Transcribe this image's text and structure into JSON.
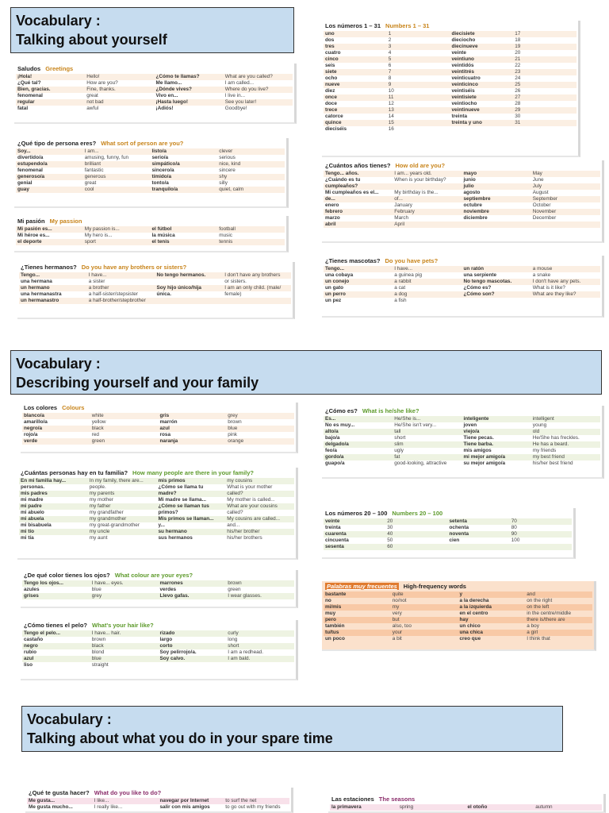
{
  "sections": [
    {
      "line1": "Vocabulary :",
      "line2": "Talking about yourself"
    },
    {
      "line1": "Vocabulary :",
      "line2": "Describing yourself and your family"
    },
    {
      "line1": "Vocabulary :",
      "line2": "Talking about what you do in your spare time"
    }
  ],
  "cards": {
    "saludos": {
      "title_es": "Saludos",
      "title_en": "Greetings",
      "rows": [
        [
          "¡Hola!",
          "Hello!",
          "¿Cómo te llamas?",
          "What are you called?"
        ],
        [
          "¿Qué tal?",
          "How are you?",
          "Me llamo...",
          "I am called..."
        ],
        [
          "Bien, gracias.",
          "Fine, thanks.",
          "¿Dónde vives?",
          "Where do you live?"
        ],
        [
          "fenomenal",
          "great",
          "Vivo en...",
          "I live in..."
        ],
        [
          "regular",
          "not bad",
          "¡Hasta luego!",
          "See you later!"
        ],
        [
          "fatal",
          "awful",
          "¡Adiós!",
          "Goodbye!"
        ]
      ]
    },
    "numeros": {
      "title_es": "Los números 1 – 31",
      "title_en": "Numbers 1 – 31",
      "rows": [
        [
          "uno",
          "1",
          "diecisiete",
          "17"
        ],
        [
          "dos",
          "2",
          "dieciocho",
          "18"
        ],
        [
          "tres",
          "3",
          "diecinueve",
          "19"
        ],
        [
          "cuatro",
          "4",
          "veinte",
          "20"
        ],
        [
          "cinco",
          "5",
          "veintiuno",
          "21"
        ],
        [
          "seis",
          "6",
          "veintidós",
          "22"
        ],
        [
          "siete",
          "7",
          "veintitrés",
          "23"
        ],
        [
          "ocho",
          "8",
          "veinticuatro",
          "24"
        ],
        [
          "nueve",
          "9",
          "veinticinco",
          "25"
        ],
        [
          "diez",
          "10",
          "veintiséis",
          "26"
        ],
        [
          "once",
          "11",
          "veintisiete",
          "27"
        ],
        [
          "doce",
          "12",
          "veintiocho",
          "28"
        ],
        [
          "trece",
          "13",
          "veintinueve",
          "29"
        ],
        [
          "catorce",
          "14",
          "treinta",
          "30"
        ],
        [
          "quince",
          "15",
          "treinta y uno",
          "31"
        ],
        [
          "dieciséis",
          "16",
          "",
          ""
        ]
      ]
    },
    "persona": {
      "title_es": "¿Qué tipo de persona eres?",
      "title_en": "What sort of person are you?",
      "rows": [
        [
          "Soy...",
          "I am...",
          "listo/a",
          "clever"
        ],
        [
          "divertido/a",
          "amusing, funny, fun",
          "serio/a",
          "serious"
        ],
        [
          "estupendo/a",
          "brilliant",
          "simpático/a",
          "nice, kind"
        ],
        [
          "fenomenal",
          "fantastic",
          "sincero/a",
          "sincere"
        ],
        [
          "generoso/a",
          "generous",
          "tímido/a",
          "shy"
        ],
        [
          "genial",
          "great",
          "tonto/a",
          "silly"
        ],
        [
          "guay",
          "cool",
          "tranquilo/a",
          "quiet, calm"
        ]
      ]
    },
    "anos": {
      "title_es": "¿Cuántos años tienes?",
      "title_en": "How old are you?",
      "rows": [
        [
          "Tengo... años.",
          "I am... years old.",
          "mayo",
          "May"
        ],
        [
          "¿Cuándo es tu",
          "When is your birthday?",
          "junio",
          "June"
        ],
        [
          "cumpleaños?",
          "",
          "julio",
          "July"
        ],
        [
          "Mi cumpleaños es el...",
          "My birthday is the...",
          "agosto",
          "August"
        ],
        [
          "de...",
          "of...",
          "septiembre",
          "September"
        ],
        [
          "enero",
          "January",
          "octubre",
          "October"
        ],
        [
          "febrero",
          "February",
          "noviembre",
          "November"
        ],
        [
          "marzo",
          "March",
          "diciembre",
          "December"
        ],
        [
          "abril",
          "April",
          "",
          ""
        ]
      ]
    },
    "pasion": {
      "title_es": "Mi pasión",
      "title_en": "My passion",
      "rows": [
        [
          "Mi pasión es...",
          "My passion is...",
          "el fútbol",
          "football"
        ],
        [
          "Mi héroe es...",
          "My hero is...",
          "la música",
          "music"
        ],
        [
          "el deporte",
          "sport",
          "el tenis",
          "tennis"
        ]
      ]
    },
    "hermanos": {
      "title_es": "¿Tienes hermanos?",
      "title_en": "Do you have any brothers or sisters?",
      "rows": [
        [
          "Tengo...",
          "I have...",
          "No tengo hermanos.",
          "I don't have any brothers"
        ],
        [
          "una hermana",
          "a sister",
          "",
          "or sisters."
        ],
        [
          "un hermano",
          "a brother",
          "Soy hijo único/hija",
          "I am an only child. (male/"
        ],
        [
          "una hermanastra",
          "a half-sister/stepsister",
          "única.",
          "female)"
        ],
        [
          "un hermanastro",
          "a half-brother/stepbrother",
          "",
          ""
        ]
      ]
    },
    "mascotas": {
      "title_es": "¿Tienes mascotas?",
      "title_en": "Do you have pets?",
      "rows": [
        [
          "Tengo...",
          "I have...",
          "un ratón",
          "a mouse"
        ],
        [
          "una cobaya",
          "a guinea pig",
          "una serpiente",
          "a snake"
        ],
        [
          "un conejo",
          "a rabbit",
          "No tengo mascotas.",
          "I don't have any pets."
        ],
        [
          "un gato",
          "a cat",
          "¿Cómo es?",
          "What is it like?"
        ],
        [
          "un perro",
          "a dog",
          "¿Cómo son?",
          "What are they like?"
        ],
        [
          "un pez",
          "a fish",
          "",
          ""
        ]
      ]
    },
    "colores": {
      "title_es": "Los colores",
      "title_en": "Colours",
      "rows": [
        [
          "blanco/a",
          "white",
          "gris",
          "grey"
        ],
        [
          "amarillo/a",
          "yellow",
          "marrón",
          "brown"
        ],
        [
          "negro/a",
          "black",
          "azul",
          "blue"
        ],
        [
          "rojo/a",
          "red",
          "rosa",
          "pink"
        ],
        [
          "verde",
          "green",
          "naranja",
          "orange"
        ]
      ]
    },
    "como_es": {
      "title_es": "¿Cómo es?",
      "title_en": "What is he/she like?",
      "rows": [
        [
          "Es...",
          "He/She is...",
          "inteligente",
          "intelligent"
        ],
        [
          "No es muy...",
          "He/She isn't very...",
          "joven",
          "young"
        ],
        [
          "alto/a",
          "tall",
          "viejo/a",
          "old"
        ],
        [
          "bajo/a",
          "short",
          "Tiene pecas.",
          "He/She has freckles."
        ],
        [
          "delgado/a",
          "slim",
          "Tiene barba.",
          "He has a beard."
        ],
        [
          "feo/a",
          "ugly",
          "mis amigos",
          "my friends"
        ],
        [
          "gordo/a",
          "fat",
          "mi mejor amigo/a",
          "my best friend"
        ],
        [
          "guapo/a",
          "good-looking, attractive",
          "su mejor amigo/a",
          "his/her best friend"
        ]
      ]
    },
    "familia": {
      "title_es": "¿Cuántas personas hay en tu familia?",
      "title_en": "How many people are there in your family?",
      "rows": [
        [
          "En mi familia hay...",
          "In my family, there are...",
          "mis primos",
          "my cousins"
        ],
        [
          "personas.",
          "people.",
          "¿Cómo se llama tu",
          "What is your mother"
        ],
        [
          "mis padres",
          "my parents",
          "madre?",
          "called?"
        ],
        [
          "mi madre",
          "my mother",
          "Mi madre se llama...",
          "My mother is called..."
        ],
        [
          "mi padre",
          "my father",
          "¿Cómo se llaman tus",
          "What are your cousins"
        ],
        [
          "mi abuelo",
          "my grandfather",
          "primos?",
          "called?"
        ],
        [
          "mi abuela",
          "my grandmother",
          "Mis primos se llaman...",
          "My cousins are called..."
        ],
        [
          "mi bisabuela",
          "my great-grandmother",
          "y...",
          "and..."
        ],
        [
          "mi tío",
          "my uncle",
          "su hermano",
          "his/her brother"
        ],
        [
          "mi tía",
          "my aunt",
          "sus hermanos",
          "his/her brothers"
        ]
      ]
    },
    "numeros2": {
      "title_es": "Los números 20 – 100",
      "title_en": "Numbers 20 – 100",
      "rows": [
        [
          "veinte",
          "20",
          "setenta",
          "70"
        ],
        [
          "treinta",
          "30",
          "ochenta",
          "80"
        ],
        [
          "cuarenta",
          "40",
          "noventa",
          "90"
        ],
        [
          "cincuenta",
          "50",
          "cien",
          "100"
        ],
        [
          "sesenta",
          "60",
          "",
          ""
        ]
      ]
    },
    "ojos": {
      "title_es": "¿De qué color tienes los ojos?",
      "title_en": "What colour are your eyes?",
      "rows": [
        [
          "Tengo los ojos...",
          "I have... eyes.",
          "marrones",
          "brown"
        ],
        [
          "azules",
          "blue",
          "verdes",
          "green"
        ],
        [
          "grises",
          "grey",
          "Llevo gafas.",
          "I wear glasses."
        ]
      ]
    },
    "frecuentes": {
      "title_es": "Palabras muy frecuentes",
      "title_en": "High-frequency words",
      "rows": [
        [
          "bastante",
          "quite",
          "y",
          "and"
        ],
        [
          "no",
          "no/not",
          "a la derecha",
          "on the right"
        ],
        [
          "mi/mis",
          "my",
          "a la izquierda",
          "on the left"
        ],
        [
          "muy",
          "very",
          "en el centro",
          "in the centre/middle"
        ],
        [
          "pero",
          "but",
          "hay",
          "there is/there are"
        ],
        [
          "también",
          "also, too",
          "un chico",
          "a boy"
        ],
        [
          "tu/tus",
          "your",
          "una chica",
          "a girl"
        ],
        [
          "un poco",
          "a bit",
          "creo que",
          "I think that"
        ]
      ]
    },
    "pelo": {
      "title_es": "¿Cómo tienes el pelo?",
      "title_en": "What's your hair like?",
      "rows": [
        [
          "Tengo el pelo...",
          "I have... hair.",
          "rizado",
          "curly"
        ],
        [
          "castaño",
          "brown",
          "largo",
          "long"
        ],
        [
          "negro",
          "black",
          "corto",
          "short"
        ],
        [
          "rubio",
          "blond",
          "Soy pelirrojo/a.",
          "I am a redhead."
        ],
        [
          "azul",
          "blue",
          "Soy calvo.",
          "I am bald."
        ],
        [
          "liso",
          "straight",
          "",
          ""
        ]
      ]
    },
    "gusta": {
      "title_es": "¿Qué te gusta hacer?",
      "title_en": "What do you like to do?",
      "rows": [
        [
          "Me gusta...",
          "I like...",
          "navegar por Internet",
          "to surf the net"
        ],
        [
          "Me gusta mucho...",
          "I really like...",
          "salir con mis amigos",
          "to go out with my friends"
        ]
      ]
    },
    "estaciones": {
      "title_es": "Las estaciones",
      "title_en": "The seasons",
      "rows": [
        [
          "la primavera",
          "spring",
          "el otoño",
          "autumn"
        ]
      ]
    }
  }
}
